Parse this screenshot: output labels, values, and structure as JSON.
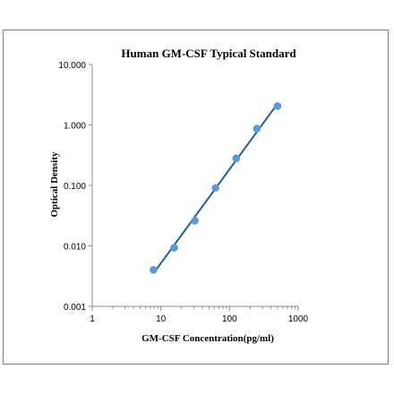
{
  "chart_data": {
    "type": "scatter",
    "title": "Human GM-CSF Typical Standard",
    "xlabel": "GM-CSF Concentration(pg/ml)",
    "ylabel": "Optical Density",
    "x_scale": "log",
    "y_scale": "log",
    "xlim": [
      1,
      1000
    ],
    "ylim": [
      0.001,
      10
    ],
    "x_ticks": [
      "1",
      "10",
      "100",
      "1000"
    ],
    "y_ticks": [
      "0.001",
      "0.010",
      "0.100",
      "1.000",
      "10.000"
    ],
    "grid": false,
    "legend": "none",
    "series": [
      {
        "x": [
          7.8,
          15.6,
          31.25,
          62.5,
          125,
          250,
          500
        ],
        "y": [
          0.004,
          0.0093,
          0.026,
          0.091,
          0.28,
          0.87,
          2.05
        ],
        "color": "#5b9bd5",
        "trendline": {
          "type": "power",
          "color": "#1f5f99"
        }
      }
    ]
  }
}
